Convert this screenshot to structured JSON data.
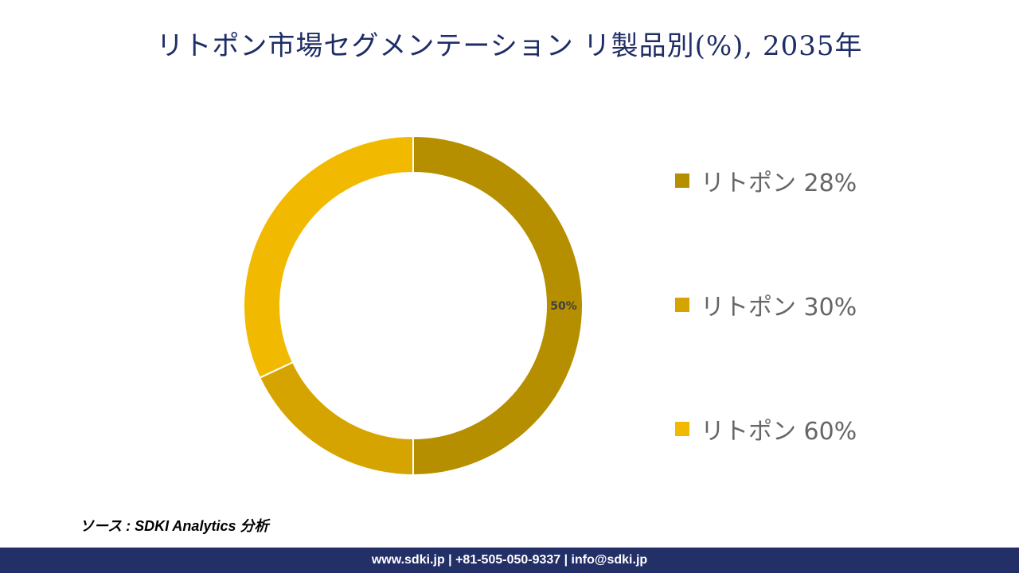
{
  "title": "リトポン市場セグメンテーション リ製品別(%), 2035年",
  "chart_data": {
    "type": "pie",
    "donut": true,
    "categories": [
      "リトポン 28%",
      "リトポン 30%",
      "リトポン 60%"
    ],
    "values": [
      50,
      18,
      32
    ],
    "colors": [
      "#b68f00",
      "#d6a400",
      "#f1ba00"
    ],
    "data_labels": [
      "50%",
      "",
      ""
    ],
    "legend_position": "right"
  },
  "source": "ソース : SDKI Analytics 分析",
  "footer": "www.sdki.jp | +81-505-050-9337 | info@sdki.jp"
}
